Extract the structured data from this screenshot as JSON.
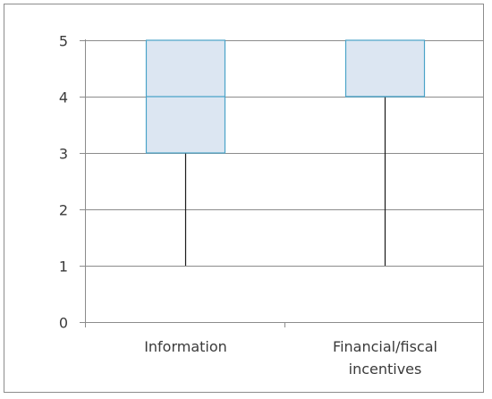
{
  "chart_data": {
    "type": "box",
    "title": "",
    "xlabel": "",
    "ylabel": "",
    "ylim": [
      0,
      5
    ],
    "yticks": [
      "0",
      "1",
      "2",
      "3",
      "4",
      "5"
    ],
    "grid": true,
    "categories": [
      {
        "label_lines": [
          "Information"
        ],
        "min": 1,
        "q1": 3,
        "median": 4,
        "q3": 5,
        "max": 5
      },
      {
        "label_lines": [
          "Financial/fiscal",
          "incentives"
        ],
        "min": 1,
        "q1": 4,
        "median": 4,
        "q3": 5,
        "max": 5
      }
    ],
    "colors": {
      "box_fill": "#dce6f2",
      "box_stroke": "#4aa3c8",
      "whisker": "#1a1a1a",
      "grid": "#8c8c8c",
      "axis": "#8c8c8c",
      "frame": "#8c8c8c"
    }
  }
}
